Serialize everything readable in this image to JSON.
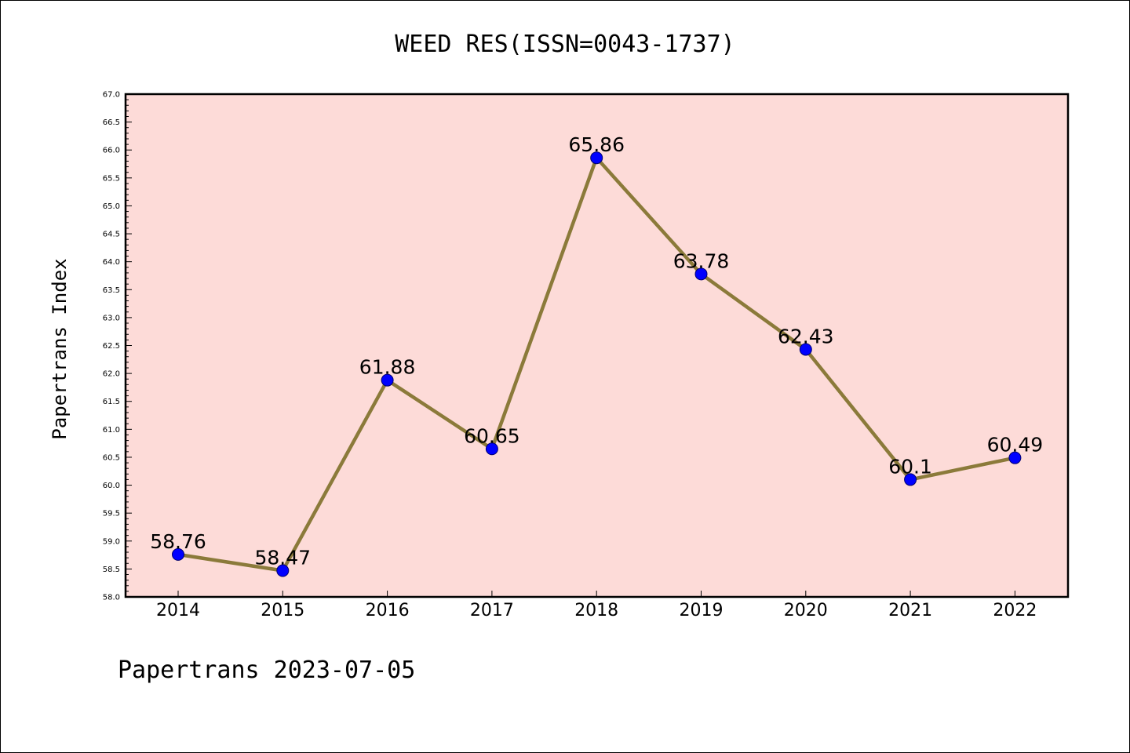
{
  "colors": {
    "background": "#ffffff",
    "plot_background": "#fddbd8",
    "line": "#8b7a3a",
    "marker": "#0000ff",
    "marker_edge": "#00006e",
    "axes": "#000000"
  },
  "footer": "Papertrans 2023-07-05",
  "chart_data": {
    "type": "line",
    "title": "WEED RES(ISSN=0043-1737)",
    "xlabel": "",
    "ylabel": "Papertrans Index",
    "categories": [
      "2014",
      "2015",
      "2016",
      "2017",
      "2018",
      "2019",
      "2020",
      "2021",
      "2022"
    ],
    "values": [
      58.76,
      58.47,
      61.88,
      60.65,
      65.86,
      63.78,
      62.43,
      60.1,
      60.49
    ],
    "data_labels": [
      "58.76",
      "58.47",
      "61.88",
      "60.65",
      "65.86",
      "63.78",
      "62.43",
      "60.1",
      "60.49"
    ],
    "ylim": [
      58.0,
      67.0
    ],
    "yticks": [
      "58.0",
      "58.5",
      "59.0",
      "59.5",
      "60.0",
      "60.5",
      "61.0",
      "61.5",
      "62.0",
      "62.5",
      "63.0",
      "63.5",
      "64.0",
      "64.5",
      "65.0",
      "65.5",
      "66.0",
      "66.5",
      "67.0"
    ],
    "grid": false,
    "legend": "none"
  }
}
